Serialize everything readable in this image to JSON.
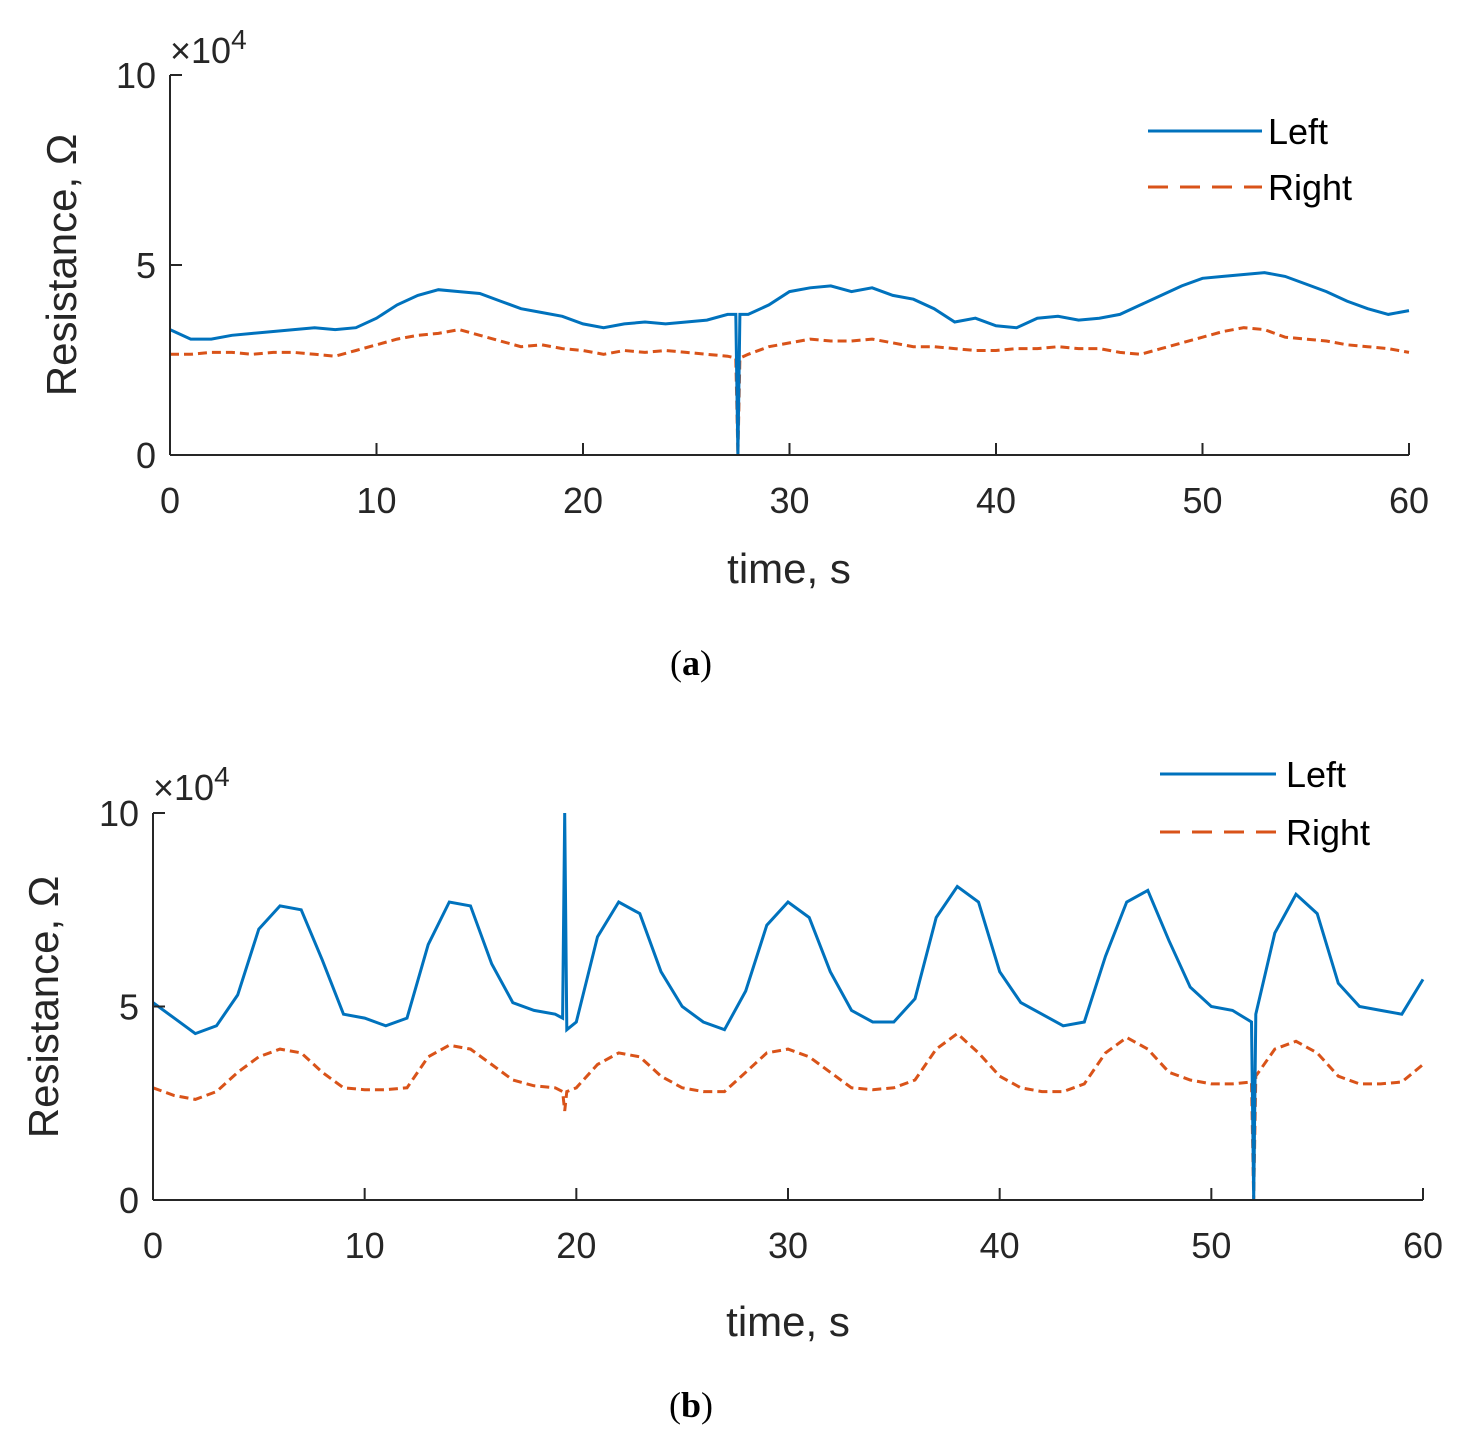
{
  "chart_data": [
    {
      "type": "line",
      "caption_letter": "a",
      "xlabel": "time, s",
      "ylabel": "Resistance, Ω",
      "y_multiplier": "×10",
      "y_exponent": "4",
      "xlim": [
        0,
        60
      ],
      "ylim": [
        0,
        10
      ],
      "xticks": [
        "0",
        "10",
        "20",
        "30",
        "40",
        "50",
        "60"
      ],
      "yticks": [
        "0",
        "5",
        "10"
      ],
      "legend": [
        "Left",
        "Right"
      ],
      "series": [
        {
          "name": "Left",
          "color": "#0072BD",
          "style": "solid",
          "x": [
            0,
            1,
            2,
            3,
            4,
            5,
            6,
            7,
            8,
            9,
            10,
            11,
            12,
            13,
            14,
            15,
            16,
            17,
            18,
            19,
            20,
            21,
            22,
            23,
            24,
            25,
            26,
            27,
            27.4,
            27.5,
            27.6,
            28,
            29,
            30,
            31,
            32,
            33,
            34,
            35,
            36,
            37,
            38,
            39,
            40,
            41,
            42,
            43,
            44,
            45,
            46,
            47,
            48,
            49,
            50,
            51,
            52,
            53,
            54,
            55,
            56,
            57,
            58,
            59,
            60
          ],
          "y": [
            3.3,
            3.05,
            3.05,
            3.15,
            3.2,
            3.25,
            3.3,
            3.35,
            3.3,
            3.35,
            3.6,
            3.95,
            4.2,
            4.35,
            4.3,
            4.25,
            4.05,
            3.85,
            3.75,
            3.65,
            3.45,
            3.35,
            3.45,
            3.5,
            3.45,
            3.5,
            3.55,
            3.7,
            3.7,
            0.0,
            3.7,
            3.7,
            3.95,
            4.3,
            4.4,
            4.45,
            4.3,
            4.4,
            4.2,
            4.1,
            3.85,
            3.5,
            3.6,
            3.4,
            3.35,
            3.6,
            3.65,
            3.55,
            3.6,
            3.7,
            3.95,
            4.2,
            4.45,
            4.65,
            4.7,
            4.75,
            4.8,
            4.7,
            4.5,
            4.3,
            4.05,
            3.85,
            3.7,
            3.8
          ]
        },
        {
          "name": "Right",
          "color": "#D95319",
          "style": "dashed",
          "x": [
            0,
            1,
            2,
            3,
            4,
            5,
            6,
            7,
            8,
            9,
            10,
            11,
            12,
            13,
            14,
            15,
            16,
            17,
            18,
            19,
            20,
            21,
            22,
            23,
            24,
            25,
            26,
            27,
            27.4,
            27.5,
            27.6,
            28,
            29,
            30,
            31,
            32,
            33,
            34,
            35,
            36,
            37,
            38,
            39,
            40,
            41,
            42,
            43,
            44,
            45,
            46,
            47,
            48,
            49,
            50,
            51,
            52,
            53,
            54,
            55,
            56,
            57,
            58,
            59,
            60
          ],
          "y": [
            2.65,
            2.65,
            2.7,
            2.7,
            2.65,
            2.7,
            2.7,
            2.65,
            2.6,
            2.75,
            2.9,
            3.05,
            3.15,
            3.2,
            3.3,
            3.15,
            3.0,
            2.85,
            2.9,
            2.8,
            2.75,
            2.65,
            2.75,
            2.7,
            2.75,
            2.7,
            2.65,
            2.6,
            2.55,
            0.0,
            2.55,
            2.65,
            2.85,
            2.95,
            3.05,
            3.0,
            3.0,
            3.05,
            2.95,
            2.85,
            2.85,
            2.8,
            2.75,
            2.75,
            2.8,
            2.8,
            2.85,
            2.8,
            2.8,
            2.7,
            2.65,
            2.8,
            2.95,
            3.1,
            3.25,
            3.35,
            3.3,
            3.1,
            3.05,
            3.0,
            2.9,
            2.85,
            2.8,
            2.7
          ]
        }
      ]
    },
    {
      "type": "line",
      "caption_letter": "b",
      "xlabel": "time, s",
      "ylabel": "Resistance, Ω",
      "y_multiplier": "×10",
      "y_exponent": "4",
      "xlim": [
        0,
        60
      ],
      "ylim": [
        0,
        10
      ],
      "xticks": [
        "0",
        "10",
        "20",
        "30",
        "40",
        "50",
        "60"
      ],
      "yticks": [
        "0",
        "5",
        "10"
      ],
      "legend": [
        "Left",
        "Right"
      ],
      "series": [
        {
          "name": "Left",
          "color": "#0072BD",
          "style": "solid",
          "x": [
            0,
            1,
            2,
            3,
            4,
            5,
            6,
            7,
            8,
            9,
            10,
            11,
            12,
            13,
            14,
            15,
            16,
            17,
            18,
            19,
            19.35,
            19.45,
            19.55,
            20,
            21,
            22,
            23,
            24,
            25,
            26,
            27,
            28,
            29,
            30,
            31,
            32,
            33,
            34,
            35,
            36,
            37,
            38,
            39,
            40,
            41,
            42,
            43,
            44,
            45,
            46,
            47,
            48,
            49,
            50,
            51,
            51.9,
            52.0,
            52.1,
            53,
            54,
            55,
            56,
            57,
            58,
            59,
            60
          ],
          "y": [
            5.1,
            4.7,
            4.3,
            4.5,
            5.3,
            7.0,
            7.6,
            7.5,
            6.2,
            4.8,
            4.7,
            4.5,
            4.7,
            6.6,
            7.7,
            7.6,
            6.1,
            5.1,
            4.9,
            4.8,
            4.7,
            10.0,
            4.4,
            4.6,
            6.8,
            7.7,
            7.4,
            5.9,
            5.0,
            4.6,
            4.4,
            5.4,
            7.1,
            7.7,
            7.3,
            5.9,
            4.9,
            4.6,
            4.6,
            5.2,
            7.3,
            8.1,
            7.7,
            5.9,
            5.1,
            4.8,
            4.5,
            4.6,
            6.3,
            7.7,
            8.0,
            6.7,
            5.5,
            5.0,
            4.9,
            4.6,
            0.0,
            4.8,
            6.9,
            7.9,
            7.4,
            5.6,
            5.0,
            4.9,
            4.8,
            5.7
          ]
        },
        {
          "name": "Right",
          "color": "#D95319",
          "style": "dashed",
          "x": [
            0,
            1,
            2,
            3,
            4,
            5,
            6,
            7,
            8,
            9,
            10,
            11,
            12,
            13,
            14,
            15,
            16,
            17,
            18,
            19,
            19.35,
            19.45,
            19.55,
            20,
            21,
            22,
            23,
            24,
            25,
            26,
            27,
            28,
            29,
            30,
            31,
            32,
            33,
            34,
            35,
            36,
            37,
            38,
            39,
            40,
            41,
            42,
            43,
            44,
            45,
            46,
            47,
            48,
            49,
            50,
            51,
            51.9,
            52.0,
            52.1,
            53,
            54,
            55,
            56,
            57,
            58,
            59,
            60
          ],
          "y": [
            2.9,
            2.7,
            2.6,
            2.8,
            3.3,
            3.7,
            3.9,
            3.8,
            3.3,
            2.9,
            2.85,
            2.85,
            2.9,
            3.7,
            4.0,
            3.9,
            3.5,
            3.1,
            2.95,
            2.9,
            2.8,
            2.3,
            2.8,
            2.9,
            3.5,
            3.8,
            3.7,
            3.2,
            2.9,
            2.8,
            2.8,
            3.3,
            3.8,
            3.9,
            3.7,
            3.3,
            2.9,
            2.85,
            2.9,
            3.1,
            3.9,
            4.3,
            3.8,
            3.2,
            2.9,
            2.8,
            2.8,
            3.0,
            3.8,
            4.2,
            3.9,
            3.3,
            3.1,
            3.0,
            3.0,
            3.05,
            0.0,
            3.2,
            3.9,
            4.1,
            3.8,
            3.2,
            3.0,
            3.0,
            3.05,
            3.5
          ]
        }
      ]
    }
  ]
}
